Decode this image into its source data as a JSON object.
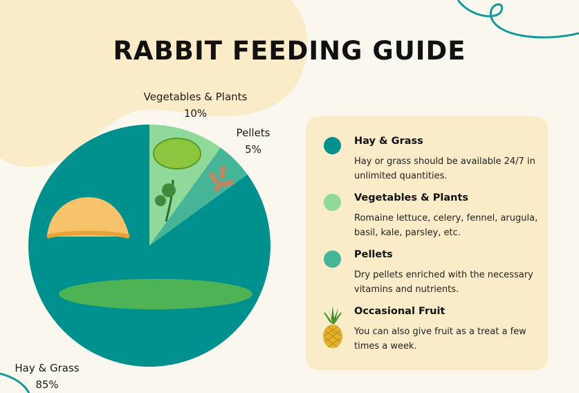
{
  "title": "RABBIT FEEDING GUIDE",
  "colors": {
    "background": "#faf7ee",
    "blob": "#faecc8",
    "accent_line": "#14999a"
  },
  "chart_data": {
    "type": "pie",
    "start": "top",
    "direction": "clockwise",
    "slices": [
      {
        "label": "Vegetables & Plants",
        "value": 10,
        "display": "10%",
        "color": "#8fd99a",
        "image": "lettuce-and-parsley"
      },
      {
        "label": "Pellets",
        "value": 5,
        "display": "5%",
        "color": "#46b597",
        "image": "pellets"
      },
      {
        "label": "Hay & Grass",
        "value": 85,
        "display": "85%",
        "color": "#00918f",
        "image": "hay-pile-and-grass"
      }
    ]
  },
  "legend": [
    {
      "title": "Hay & Grass",
      "desc": "Hay or grass should be available 24/7 in unlimited quantities.",
      "color": "#00918f",
      "icon": "dot"
    },
    {
      "title": "Vegetables & Plants",
      "desc": "Romaine lettuce, celery, fennel, arugula, basil, kale, parsley, etc.",
      "color": "#8fd99a",
      "icon": "dot"
    },
    {
      "title": "Pellets",
      "desc": "Dry pellets enriched with the necessary vitamins and nutrients.",
      "color": "#46b597",
      "icon": "dot"
    },
    {
      "title": "Occasional Fruit",
      "desc": "You can also give fruit as a treat a few times a week.",
      "icon": "pineapple-icon"
    }
  ]
}
